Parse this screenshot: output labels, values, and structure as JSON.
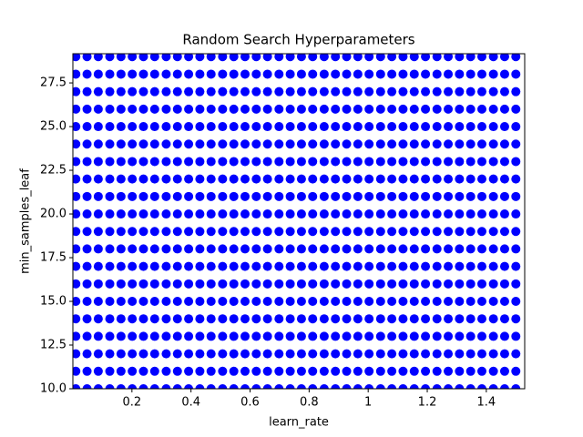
{
  "chart_data": {
    "type": "scatter",
    "title": "Random Search Hyperparameters",
    "x_label": "learn_rate",
    "y_label": "min_samples_leaf",
    "color": "#0000ff",
    "xlim": [
      0.0,
      1.53
    ],
    "ylim": [
      10,
      29.17
    ],
    "xticks": [
      0.2,
      0.4,
      0.6,
      0.8,
      1.0,
      1.2,
      1.4
    ],
    "yticks": [
      {
        "value": 10,
        "label": "10.0"
      },
      12.5,
      {
        "value": 15,
        "label": "15.0"
      },
      17.5,
      {
        "value": 20,
        "label": "20.0"
      },
      22.5,
      {
        "value": 25,
        "label": "25.0"
      },
      27.5
    ],
    "x": [
      0.01,
      0.048,
      0.086,
      0.125,
      0.163,
      0.201,
      0.239,
      0.277,
      0.316,
      0.354,
      0.392,
      0.43,
      0.468,
      0.507,
      0.545,
      0.583,
      0.621,
      0.659,
      0.698,
      0.736,
      0.774,
      0.812,
      0.851,
      0.889,
      0.927,
      0.965,
      1.003,
      1.042,
      1.08,
      1.118,
      1.156,
      1.194,
      1.233,
      1.271,
      1.309,
      1.347,
      1.385,
      1.424,
      1.462,
      1.5,
      0.01,
      0.048,
      0.086,
      0.125,
      0.163,
      0.201,
      0.239,
      0.277,
      0.316,
      0.354,
      0.392,
      0.43,
      0.468,
      0.507,
      0.545,
      0.583,
      0.621,
      0.659,
      0.698,
      0.736,
      0.774,
      0.812,
      0.851,
      0.889,
      0.927,
      0.965,
      1.003,
      1.042,
      1.08,
      1.118,
      1.156,
      1.194,
      1.233,
      1.271,
      1.309,
      1.347,
      1.385,
      1.424,
      1.462,
      1.5,
      0.01,
      0.048,
      0.086,
      0.125,
      0.163,
      0.201,
      0.239,
      0.277,
      0.316,
      0.354,
      0.392,
      0.43,
      0.468,
      0.507,
      0.545,
      0.583,
      0.621,
      0.659,
      0.698,
      0.736,
      0.774,
      0.812,
      0.851,
      0.889,
      0.927,
      0.965,
      1.003,
      1.042,
      1.08,
      1.118,
      1.156,
      1.194,
      1.233,
      1.271,
      1.309,
      1.347,
      1.385,
      1.424,
      1.462,
      1.5,
      0.01,
      0.048,
      0.086,
      0.125,
      0.163,
      0.201,
      0.239,
      0.277,
      0.316,
      0.354,
      0.392,
      0.43,
      0.468,
      0.507,
      0.545,
      0.583,
      0.621,
      0.659,
      0.698,
      0.736,
      0.774,
      0.812,
      0.851,
      0.889,
      0.927,
      0.965,
      1.003,
      1.042,
      1.08,
      1.118,
      1.156,
      1.194,
      1.233,
      1.271,
      1.309,
      1.347,
      1.385,
      1.424,
      1.462,
      1.5,
      0.01,
      0.048,
      0.086,
      0.125,
      0.163,
      0.201,
      0.239,
      0.277,
      0.316,
      0.354,
      0.392,
      0.43,
      0.468,
      0.507,
      0.545,
      0.583,
      0.621,
      0.659,
      0.698,
      0.736,
      0.774,
      0.812,
      0.851,
      0.889,
      0.927,
      0.965,
      1.003,
      1.042,
      1.08,
      1.118,
      1.156,
      1.194,
      1.233,
      1.271,
      1.309,
      1.347,
      1.385,
      1.424,
      1.462,
      1.5,
      0.01,
      0.048,
      0.086,
      0.125,
      0.163,
      0.201,
      0.239,
      0.277,
      0.316,
      0.354,
      0.392,
      0.43,
      0.468,
      0.507,
      0.545,
      0.583,
      0.621,
      0.659,
      0.698,
      0.736,
      0.774,
      0.812,
      0.851,
      0.889,
      0.927,
      0.965,
      1.003,
      1.042,
      1.08,
      1.118,
      1.156,
      1.194,
      1.233,
      1.271,
      1.309,
      1.347,
      1.385,
      1.424,
      1.462,
      1.5,
      0.01,
      0.048,
      0.086,
      0.125,
      0.163,
      0.201,
      0.239,
      0.277,
      0.316,
      0.354,
      0.392,
      0.43,
      0.468,
      0.507,
      0.545,
      0.583,
      0.621,
      0.659,
      0.698,
      0.736,
      0.774,
      0.812,
      0.851,
      0.889,
      0.927,
      0.965,
      1.003,
      1.042,
      1.08,
      1.118,
      1.156,
      1.194,
      1.233,
      1.271,
      1.309,
      1.347,
      1.385,
      1.424,
      1.462,
      1.5,
      0.01,
      0.048,
      0.086,
      0.125,
      0.163,
      0.201,
      0.239,
      0.277,
      0.316,
      0.354,
      0.392,
      0.43,
      0.468,
      0.507,
      0.545,
      0.583,
      0.621,
      0.659,
      0.698,
      0.736,
      0.774,
      0.812,
      0.851,
      0.889,
      0.927,
      0.965,
      1.003,
      1.042,
      1.08,
      1.118,
      1.156,
      1.194,
      1.233,
      1.271,
      1.309,
      1.347,
      1.385,
      1.424,
      1.462,
      1.5,
      0.01,
      0.048,
      0.086,
      0.125,
      0.163,
      0.201,
      0.239,
      0.277,
      0.316,
      0.354,
      0.392,
      0.43,
      0.468,
      0.507,
      0.545,
      0.583,
      0.621,
      0.659,
      0.698,
      0.736,
      0.774,
      0.812,
      0.851,
      0.889,
      0.927,
      0.965,
      1.003,
      1.042,
      1.08,
      1.118,
      1.156,
      1.194,
      1.233,
      1.271,
      1.309,
      1.347,
      1.385,
      1.424,
      1.462,
      1.5,
      0.01,
      0.048,
      0.086,
      0.125,
      0.163,
      0.201,
      0.239,
      0.277,
      0.316,
      0.354,
      0.392,
      0.43,
      0.468,
      0.507,
      0.545,
      0.583,
      0.621,
      0.659,
      0.698,
      0.736,
      0.774,
      0.812,
      0.851,
      0.889,
      0.927,
      0.965,
      1.003,
      1.042,
      1.08,
      1.118,
      1.156,
      1.194,
      1.233,
      1.271,
      1.309,
      1.347,
      1.385,
      1.424,
      1.462,
      1.5,
      0.01,
      0.048,
      0.086,
      0.125,
      0.163,
      0.201,
      0.239,
      0.277,
      0.316,
      0.354,
      0.392,
      0.43,
      0.468,
      0.507,
      0.545,
      0.583,
      0.621,
      0.659,
      0.698,
      0.736,
      0.774,
      0.812,
      0.851,
      0.889,
      0.927,
      0.965,
      1.003,
      1.042,
      1.08,
      1.118,
      1.156,
      1.194,
      1.233,
      1.271,
      1.309,
      1.347,
      1.385,
      1.424,
      1.462,
      1.5,
      0.01,
      0.048,
      0.086,
      0.125,
      0.163,
      0.201,
      0.239,
      0.277,
      0.316,
      0.354,
      0.392,
      0.43,
      0.468,
      0.507,
      0.545,
      0.583,
      0.621,
      0.659,
      0.698,
      0.736,
      0.774,
      0.812,
      0.851,
      0.889,
      0.927,
      0.965,
      1.003,
      1.042,
      1.08,
      1.118,
      1.156,
      1.194,
      1.233,
      1.271,
      1.309,
      1.347,
      1.385,
      1.424,
      1.462,
      1.5,
      0.01,
      0.048,
      0.086,
      0.125,
      0.163,
      0.201,
      0.239,
      0.277,
      0.316,
      0.354,
      0.392,
      0.43,
      0.468,
      0.507,
      0.545,
      0.583,
      0.621,
      0.659,
      0.698,
      0.736,
      0.774,
      0.812,
      0.851,
      0.889,
      0.927,
      0.965,
      1.003,
      1.042,
      1.08,
      1.118,
      1.156,
      1.194,
      1.233,
      1.271,
      1.309,
      1.347,
      1.385,
      1.424,
      1.462,
      1.5,
      0.01,
      0.048,
      0.086,
      0.125,
      0.163,
      0.201,
      0.239,
      0.277,
      0.316,
      0.354,
      0.392,
      0.43,
      0.468,
      0.507,
      0.545,
      0.583,
      0.621,
      0.659,
      0.698,
      0.736,
      0.774,
      0.812,
      0.851,
      0.889,
      0.927,
      0.965,
      1.003,
      1.042,
      1.08,
      1.118,
      1.156,
      1.194,
      1.233,
      1.271,
      1.309,
      1.347,
      1.385,
      1.424,
      1.462,
      1.5,
      0.01,
      0.048,
      0.086,
      0.125,
      0.163,
      0.201,
      0.239,
      0.277,
      0.316,
      0.354,
      0.392,
      0.43,
      0.468,
      0.507,
      0.545,
      0.583,
      0.621,
      0.659,
      0.698,
      0.736,
      0.774,
      0.812,
      0.851,
      0.889,
      0.927,
      0.965,
      1.003,
      1.042,
      1.08,
      1.118,
      1.156,
      1.194,
      1.233,
      1.271,
      1.309,
      1.347,
      1.385,
      1.424,
      1.462,
      1.5,
      0.01,
      0.048,
      0.086,
      0.125,
      0.163,
      0.201,
      0.239,
      0.277,
      0.316,
      0.354,
      0.392,
      0.43,
      0.468,
      0.507,
      0.545,
      0.583,
      0.621,
      0.659,
      0.698,
      0.736,
      0.774,
      0.812,
      0.851,
      0.889,
      0.927,
      0.965,
      1.003,
      1.042,
      1.08,
      1.118,
      1.156,
      1.194,
      1.233,
      1.271,
      1.309,
      1.347,
      1.385,
      1.424,
      1.462,
      1.5,
      0.01,
      0.048,
      0.086,
      0.125,
      0.163,
      0.201,
      0.239,
      0.277,
      0.316,
      0.354,
      0.392,
      0.43,
      0.468,
      0.507,
      0.545,
      0.583,
      0.621,
      0.659,
      0.698,
      0.736,
      0.774,
      0.812,
      0.851,
      0.889,
      0.927,
      0.965,
      1.003,
      1.042,
      1.08,
      1.118,
      1.156,
      1.194,
      1.233,
      1.271,
      1.309,
      1.347,
      1.385,
      1.424,
      1.462,
      1.5,
      0.01,
      0.048,
      0.086,
      0.125,
      0.163,
      0.201,
      0.239,
      0.277,
      0.316,
      0.354,
      0.392,
      0.43,
      0.468,
      0.507,
      0.545,
      0.583,
      0.621,
      0.659,
      0.698,
      0.736,
      0.774,
      0.812,
      0.851,
      0.889,
      0.927,
      0.965,
      1.003,
      1.042,
      1.08,
      1.118,
      1.156,
      1.194,
      1.233,
      1.271,
      1.309,
      1.347,
      1.385,
      1.424,
      1.462,
      1.5,
      0.01,
      0.048,
      0.086,
      0.125,
      0.163,
      0.201,
      0.239,
      0.277,
      0.316,
      0.354,
      0.392,
      0.43,
      0.468,
      0.507,
      0.545,
      0.583,
      0.621,
      0.659,
      0.698,
      0.736,
      0.774,
      0.812,
      0.851,
      0.889,
      0.927,
      0.965,
      1.003,
      1.042,
      1.08,
      1.118,
      1.156,
      1.194,
      1.233,
      1.271,
      1.309,
      1.347,
      1.385,
      1.424,
      1.462,
      1.5,
      0.01,
      0.048,
      0.086,
      0.125,
      0.163,
      0.201,
      0.239,
      0.277,
      0.316,
      0.354,
      0.392,
      0.43,
      0.468,
      0.507,
      0.545,
      0.583,
      0.621,
      0.659,
      0.698,
      0.736,
      0.774,
      0.812,
      0.851,
      0.889,
      0.927,
      0.965,
      1.003,
      1.042,
      1.08,
      1.118,
      1.156,
      1.194,
      1.233,
      1.271,
      1.309,
      1.347,
      1.385,
      1.424,
      1.462,
      1.5
    ],
    "y": [
      10,
      10,
      10,
      10,
      10,
      10,
      10,
      10,
      10,
      10,
      10,
      10,
      10,
      10,
      10,
      10,
      10,
      10,
      10,
      10,
      10,
      10,
      10,
      10,
      10,
      10,
      10,
      10,
      10,
      10,
      10,
      10,
      10,
      10,
      10,
      10,
      10,
      10,
      10,
      10,
      11,
      11,
      11,
      11,
      11,
      11,
      11,
      11,
      11,
      11,
      11,
      11,
      11,
      11,
      11,
      11,
      11,
      11,
      11,
      11,
      11,
      11,
      11,
      11,
      11,
      11,
      11,
      11,
      11,
      11,
      11,
      11,
      11,
      11,
      11,
      11,
      11,
      11,
      11,
      11,
      12,
      12,
      12,
      12,
      12,
      12,
      12,
      12,
      12,
      12,
      12,
      12,
      12,
      12,
      12,
      12,
      12,
      12,
      12,
      12,
      12,
      12,
      12,
      12,
      12,
      12,
      12,
      12,
      12,
      12,
      12,
      12,
      12,
      12,
      12,
      12,
      12,
      12,
      12,
      12,
      13,
      13,
      13,
      13,
      13,
      13,
      13,
      13,
      13,
      13,
      13,
      13,
      13,
      13,
      13,
      13,
      13,
      13,
      13,
      13,
      13,
      13,
      13,
      13,
      13,
      13,
      13,
      13,
      13,
      13,
      13,
      13,
      13,
      13,
      13,
      13,
      13,
      13,
      13,
      13,
      14,
      14,
      14,
      14,
      14,
      14,
      14,
      14,
      14,
      14,
      14,
      14,
      14,
      14,
      14,
      14,
      14,
      14,
      14,
      14,
      14,
      14,
      14,
      14,
      14,
      14,
      14,
      14,
      14,
      14,
      14,
      14,
      14,
      14,
      14,
      14,
      14,
      14,
      14,
      14,
      15,
      15,
      15,
      15,
      15,
      15,
      15,
      15,
      15,
      15,
      15,
      15,
      15,
      15,
      15,
      15,
      15,
      15,
      15,
      15,
      15,
      15,
      15,
      15,
      15,
      15,
      15,
      15,
      15,
      15,
      15,
      15,
      15,
      15,
      15,
      15,
      15,
      15,
      15,
      15,
      16,
      16,
      16,
      16,
      16,
      16,
      16,
      16,
      16,
      16,
      16,
      16,
      16,
      16,
      16,
      16,
      16,
      16,
      16,
      16,
      16,
      16,
      16,
      16,
      16,
      16,
      16,
      16,
      16,
      16,
      16,
      16,
      16,
      16,
      16,
      16,
      16,
      16,
      16,
      16,
      17,
      17,
      17,
      17,
      17,
      17,
      17,
      17,
      17,
      17,
      17,
      17,
      17,
      17,
      17,
      17,
      17,
      17,
      17,
      17,
      17,
      17,
      17,
      17,
      17,
      17,
      17,
      17,
      17,
      17,
      17,
      17,
      17,
      17,
      17,
      17,
      17,
      17,
      17,
      17,
      18,
      18,
      18,
      18,
      18,
      18,
      18,
      18,
      18,
      18,
      18,
      18,
      18,
      18,
      18,
      18,
      18,
      18,
      18,
      18,
      18,
      18,
      18,
      18,
      18,
      18,
      18,
      18,
      18,
      18,
      18,
      18,
      18,
      18,
      18,
      18,
      18,
      18,
      18,
      18,
      19,
      19,
      19,
      19,
      19,
      19,
      19,
      19,
      19,
      19,
      19,
      19,
      19,
      19,
      19,
      19,
      19,
      19,
      19,
      19,
      19,
      19,
      19,
      19,
      19,
      19,
      19,
      19,
      19,
      19,
      19,
      19,
      19,
      19,
      19,
      19,
      19,
      19,
      19,
      19,
      20,
      20,
      20,
      20,
      20,
      20,
      20,
      20,
      20,
      20,
      20,
      20,
      20,
      20,
      20,
      20,
      20,
      20,
      20,
      20,
      20,
      20,
      20,
      20,
      20,
      20,
      20,
      20,
      20,
      20,
      20,
      20,
      20,
      20,
      20,
      20,
      20,
      20,
      20,
      20,
      21,
      21,
      21,
      21,
      21,
      21,
      21,
      21,
      21,
      21,
      21,
      21,
      21,
      21,
      21,
      21,
      21,
      21,
      21,
      21,
      21,
      21,
      21,
      21,
      21,
      21,
      21,
      21,
      21,
      21,
      21,
      21,
      21,
      21,
      21,
      21,
      21,
      21,
      21,
      21,
      22,
      22,
      22,
      22,
      22,
      22,
      22,
      22,
      22,
      22,
      22,
      22,
      22,
      22,
      22,
      22,
      22,
      22,
      22,
      22,
      22,
      22,
      22,
      22,
      22,
      22,
      22,
      22,
      22,
      22,
      22,
      22,
      22,
      22,
      22,
      22,
      22,
      22,
      22,
      22,
      23,
      23,
      23,
      23,
      23,
      23,
      23,
      23,
      23,
      23,
      23,
      23,
      23,
      23,
      23,
      23,
      23,
      23,
      23,
      23,
      23,
      23,
      23,
      23,
      23,
      23,
      23,
      23,
      23,
      23,
      23,
      23,
      23,
      23,
      23,
      23,
      23,
      23,
      23,
      23,
      24,
      24,
      24,
      24,
      24,
      24,
      24,
      24,
      24,
      24,
      24,
      24,
      24,
      24,
      24,
      24,
      24,
      24,
      24,
      24,
      24,
      24,
      24,
      24,
      24,
      24,
      24,
      24,
      24,
      24,
      24,
      24,
      24,
      24,
      24,
      24,
      24,
      24,
      24,
      24,
      25,
      25,
      25,
      25,
      25,
      25,
      25,
      25,
      25,
      25,
      25,
      25,
      25,
      25,
      25,
      25,
      25,
      25,
      25,
      25,
      25,
      25,
      25,
      25,
      25,
      25,
      25,
      25,
      25,
      25,
      25,
      25,
      25,
      25,
      25,
      25,
      25,
      25,
      25,
      25,
      26,
      26,
      26,
      26,
      26,
      26,
      26,
      26,
      26,
      26,
      26,
      26,
      26,
      26,
      26,
      26,
      26,
      26,
      26,
      26,
      26,
      26,
      26,
      26,
      26,
      26,
      26,
      26,
      26,
      26,
      26,
      26,
      26,
      26,
      26,
      26,
      26,
      26,
      26,
      26,
      27,
      27,
      27,
      27,
      27,
      27,
      27,
      27,
      27,
      27,
      27,
      27,
      27,
      27,
      27,
      27,
      27,
      27,
      27,
      27,
      27,
      27,
      27,
      27,
      27,
      27,
      27,
      27,
      27,
      27,
      27,
      27,
      27,
      27,
      27,
      27,
      27,
      27,
      27,
      27,
      28,
      28,
      28,
      28,
      28,
      28,
      28,
      28,
      28,
      28,
      28,
      28,
      28,
      28,
      28,
      28,
      28,
      28,
      28,
      28,
      28,
      28,
      28,
      28,
      28,
      28,
      28,
      28,
      28,
      28,
      28,
      28,
      28,
      28,
      28,
      28,
      28,
      28,
      28,
      28,
      29,
      29,
      29,
      29,
      29,
      29,
      29,
      29,
      29,
      29,
      29,
      29,
      29,
      29,
      29,
      29,
      29,
      29,
      29,
      29,
      29,
      29,
      29,
      29,
      29,
      29,
      29,
      29,
      29,
      29,
      29,
      29,
      29,
      29,
      29,
      29,
      29,
      29,
      29,
      29
    ]
  }
}
